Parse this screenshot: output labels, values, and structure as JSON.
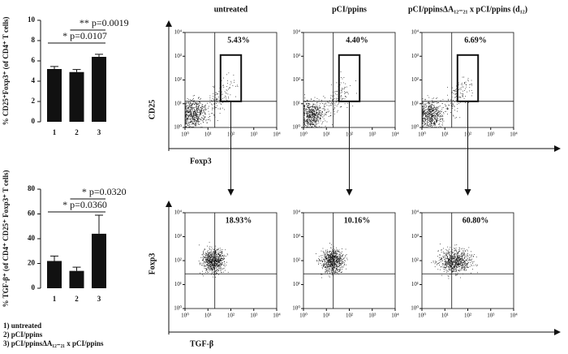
{
  "chart_data": [
    {
      "type": "bar",
      "ylabel": "% CD25⁺Foxp3⁺ (of CD4⁺ T cells)",
      "categories": [
        "1",
        "2",
        "3"
      ],
      "values": [
        5.2,
        4.9,
        6.4
      ],
      "errors": [
        0.25,
        0.25,
        0.25
      ],
      "color": "#111111",
      "ylim": [
        0,
        10
      ],
      "yticks": [
        0,
        2,
        4,
        6,
        8,
        10
      ],
      "annotations": [
        "** p=0.0019",
        "* p=0.0107"
      ]
    },
    {
      "type": "bar",
      "ylabel": "% TGF-β⁺ (of CD4⁺ CD25⁺ Foxp3⁺ T cells)",
      "categories": [
        "1",
        "2",
        "3"
      ],
      "values": [
        22,
        14,
        44
      ],
      "errors": [
        4,
        3,
        15
      ],
      "color": "#111111",
      "ylim": [
        0,
        80
      ],
      "yticks": [
        0,
        20,
        40,
        60,
        80
      ],
      "annotations": [
        "* p=0.0320",
        "* p=0.0360"
      ]
    }
  ],
  "legend": [
    "1) untreated",
    "2) pCI/ppins",
    "3) pCI/ppinsΔA₁₂₋₂₁ x pCI/ppins"
  ],
  "flow": {
    "column_titles": [
      "untreated",
      "pCI/ppins",
      "pCI/ppinsΔA₁₂₋₂₁ x pCI/ppins (d₁₂)"
    ],
    "top_ylabel": "CD25",
    "top_xlabel": "Foxp3",
    "bottom_ylabel": "Foxp3",
    "bottom_xlabel": "TGF-β",
    "top_percents": [
      "5.43%",
      "4.40%",
      "6.69%"
    ],
    "bottom_percents": [
      "18.93%",
      "10.16%",
      "60.80%"
    ],
    "lim": [
      1,
      10000
    ],
    "ticks": [
      {
        "value": 1,
        "label": "10⁰"
      },
      {
        "value": 10,
        "label": "10¹"
      },
      {
        "value": 100,
        "label": "10²"
      },
      {
        "value": 1000,
        "label": "10³"
      },
      {
        "value": 10000,
        "label": "10⁴"
      }
    ]
  }
}
